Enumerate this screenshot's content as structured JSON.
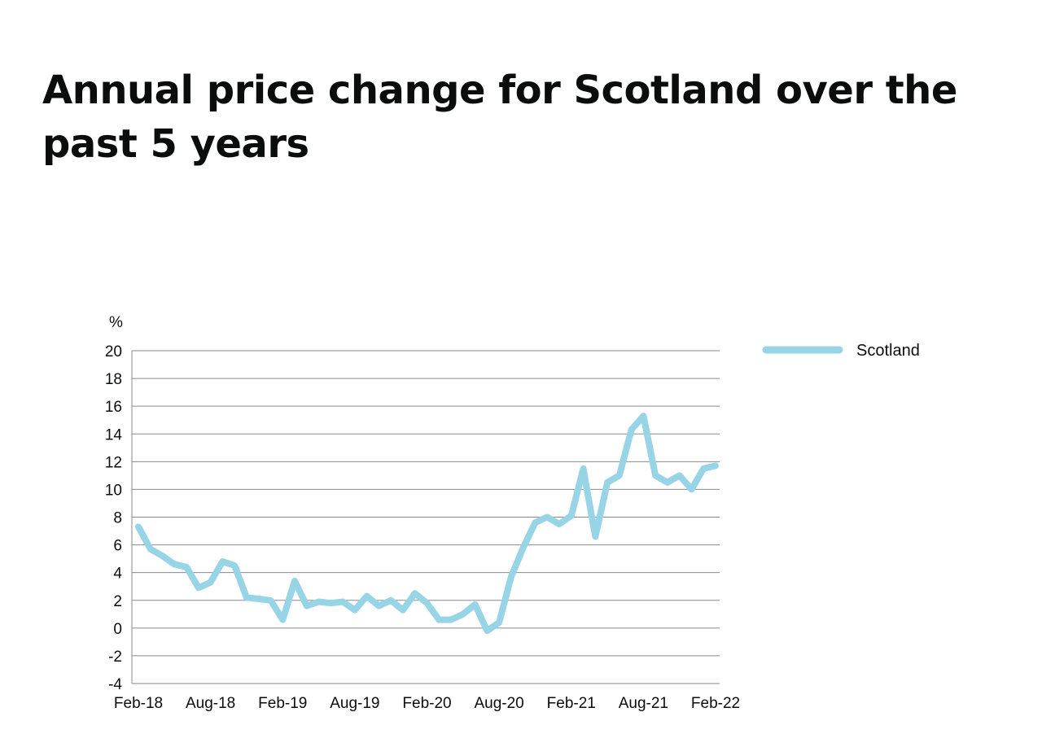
{
  "page": {
    "title": "Annual price change for Scotland over the past 5 years"
  },
  "chart_data": {
    "type": "line",
    "title": "Annual price change for Scotland over the past 5 years",
    "xlabel": "",
    "ylabel": "%",
    "ylim": [
      -4,
      20
    ],
    "yticks": [
      -4,
      -2,
      0,
      2,
      4,
      6,
      8,
      10,
      12,
      14,
      16,
      18,
      20
    ],
    "grid": true,
    "legend_position": "right",
    "line_color": "#97d4e6",
    "x_tick_labels": [
      "Feb-18",
      "Aug-18",
      "Feb-19",
      "Aug-19",
      "Feb-20",
      "Aug-20",
      "Feb-21",
      "Aug-21",
      "Feb-22"
    ],
    "x": [
      "Feb-18",
      "Mar-18",
      "Apr-18",
      "May-18",
      "Jun-18",
      "Jul-18",
      "Aug-18",
      "Sep-18",
      "Oct-18",
      "Nov-18",
      "Dec-18",
      "Jan-19",
      "Feb-19",
      "Mar-19",
      "Apr-19",
      "May-19",
      "Jun-19",
      "Jul-19",
      "Aug-19",
      "Sep-19",
      "Oct-19",
      "Nov-19",
      "Dec-19",
      "Jan-20",
      "Feb-20",
      "Mar-20",
      "Apr-20",
      "May-20",
      "Jun-20",
      "Jul-20",
      "Aug-20",
      "Sep-20",
      "Oct-20",
      "Nov-20",
      "Dec-20",
      "Jan-21",
      "Feb-21",
      "Mar-21",
      "Apr-21",
      "May-21",
      "Jun-21",
      "Jul-21",
      "Aug-21",
      "Sep-21",
      "Oct-21",
      "Nov-21",
      "Dec-21",
      "Jan-22",
      "Feb-22"
    ],
    "series": [
      {
        "name": "Scotland",
        "values": [
          7.3,
          5.7,
          5.2,
          4.6,
          4.4,
          2.9,
          3.3,
          4.8,
          4.5,
          2.2,
          2.1,
          2.0,
          0.6,
          3.4,
          1.6,
          1.9,
          1.8,
          1.9,
          1.3,
          2.3,
          1.6,
          2.0,
          1.3,
          2.5,
          1.8,
          0.6,
          0.6,
          1.0,
          1.7,
          -0.2,
          0.4,
          3.7,
          5.8,
          7.6,
          8.0,
          7.5,
          8.1,
          11.5,
          6.6,
          10.5,
          11.0,
          14.3,
          15.3,
          11.0,
          10.5,
          11.0,
          10.0,
          11.5,
          11.7
        ]
      }
    ]
  }
}
